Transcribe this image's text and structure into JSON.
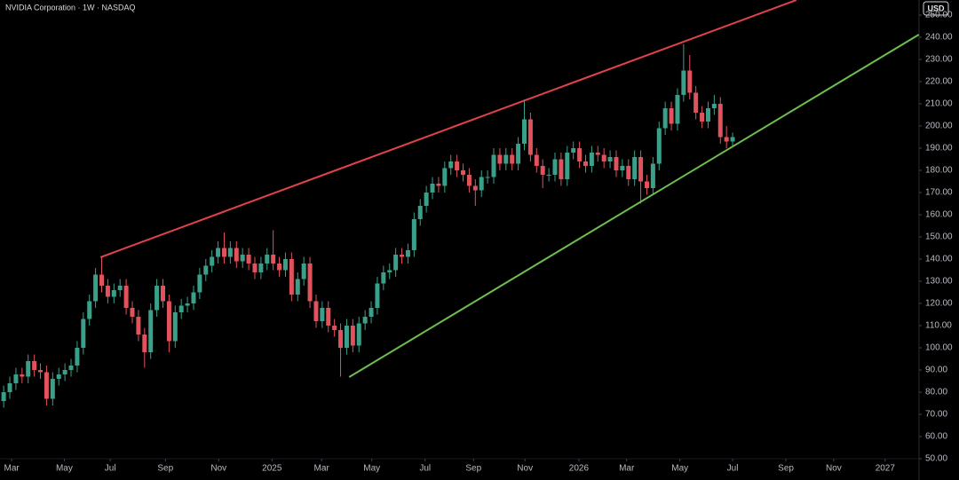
{
  "chart_data": {
    "type": "candlestick",
    "title": "NVIDIA Corporation · 1W · NASDAQ",
    "currency": "USD",
    "up_color": "#3aa08a",
    "down_color": "#e0525c",
    "open": [
      76,
      80,
      84,
      88,
      87,
      94,
      90,
      89,
      77,
      86,
      88,
      90,
      92,
      100,
      113,
      121,
      133,
      128,
      123,
      126,
      128,
      118,
      114,
      106,
      98,
      117,
      128,
      121,
      103,
      116,
      119,
      120,
      125,
      133,
      137,
      141,
      145,
      141,
      145,
      139,
      142,
      138,
      134,
      138,
      142,
      138,
      135,
      140,
      124,
      131,
      138,
      121,
      112,
      118,
      110,
      108,
      100,
      110,
      101,
      111,
      114,
      118,
      129,
      134,
      135,
      142,
      141,
      144,
      158,
      164,
      170,
      174,
      173,
      181,
      184,
      180,
      178,
      173,
      171,
      177,
      177,
      187,
      183,
      187,
      183,
      192,
      203,
      187,
      182,
      178,
      178,
      185,
      176,
      188,
      190,
      184,
      182,
      188,
      187,
      184,
      186,
      180,
      182,
      176,
      186,
      175,
      172,
      183,
      199,
      208,
      201,
      214,
      225,
      215,
      206,
      202,
      208,
      210,
      195,
      193
    ],
    "high": [
      83,
      87,
      91,
      91,
      97,
      97,
      93,
      92,
      89,
      91,
      93,
      95,
      103,
      116,
      124,
      136,
      141,
      131,
      129,
      131,
      131,
      121,
      117,
      109,
      120,
      131,
      131,
      124,
      119,
      122,
      123,
      128,
      136,
      140,
      144,
      148,
      152,
      148,
      148,
      145,
      145,
      141,
      141,
      145,
      153,
      141,
      143,
      143,
      134,
      141,
      141,
      124,
      121,
      121,
      113,
      111,
      113,
      113,
      114,
      117,
      121,
      132,
      137,
      138,
      145,
      145,
      147,
      161,
      167,
      173,
      177,
      177,
      184,
      187,
      187,
      183,
      181,
      176,
      180,
      180,
      190,
      190,
      190,
      190,
      195,
      212,
      206,
      190,
      185,
      181,
      188,
      188,
      191,
      193,
      193,
      187,
      191,
      191,
      190,
      189,
      189,
      185,
      185,
      189,
      189,
      178,
      186,
      202,
      211,
      211,
      217,
      237,
      232,
      218,
      209,
      211,
      214,
      213,
      200,
      197
    ],
    "low": [
      73,
      77,
      81,
      84,
      84,
      87,
      86,
      74,
      74,
      83,
      85,
      87,
      89,
      97,
      110,
      118,
      125,
      120,
      120,
      123,
      115,
      111,
      103,
      91,
      95,
      114,
      118,
      98,
      100,
      113,
      116,
      117,
      122,
      130,
      134,
      138,
      138,
      138,
      136,
      136,
      135,
      131,
      131,
      135,
      135,
      132,
      132,
      121,
      121,
      128,
      118,
      109,
      109,
      107,
      105,
      87,
      97,
      98,
      98,
      108,
      111,
      115,
      126,
      131,
      132,
      138,
      138,
      141,
      155,
      161,
      167,
      170,
      170,
      178,
      177,
      175,
      170,
      164,
      168,
      174,
      174,
      180,
      180,
      180,
      180,
      189,
      184,
      179,
      172,
      175,
      175,
      173,
      173,
      185,
      181,
      179,
      179,
      184,
      181,
      181,
      177,
      177,
      173,
      173,
      165,
      169,
      169,
      180,
      196,
      198,
      198,
      211,
      212,
      203,
      199,
      199,
      205,
      192,
      190,
      191
    ],
    "close": [
      80,
      84,
      88,
      87,
      94,
      90,
      89,
      77,
      86,
      88,
      90,
      92,
      100,
      113,
      121,
      133,
      128,
      123,
      126,
      128,
      118,
      114,
      106,
      98,
      117,
      128,
      121,
      103,
      116,
      119,
      120,
      125,
      133,
      137,
      141,
      145,
      141,
      145,
      139,
      142,
      138,
      134,
      138,
      142,
      138,
      135,
      140,
      124,
      131,
      138,
      121,
      112,
      118,
      110,
      108,
      100,
      110,
      101,
      111,
      114,
      118,
      129,
      134,
      135,
      142,
      141,
      144,
      158,
      164,
      170,
      174,
      173,
      181,
      184,
      180,
      178,
      173,
      171,
      177,
      177,
      187,
      183,
      187,
      183,
      192,
      203,
      187,
      182,
      178,
      178,
      185,
      176,
      188,
      190,
      184,
      182,
      188,
      187,
      184,
      186,
      180,
      182,
      176,
      186,
      175,
      172,
      183,
      199,
      208,
      201,
      214,
      225,
      215,
      206,
      202,
      208,
      210,
      195,
      193,
      195
    ],
    "trendlines": [
      {
        "color": "#e0424c",
        "x": [
          15.8,
          129.4
        ],
        "y": [
          140.8,
          256.8
        ]
      },
      {
        "color": "#6cbf4c",
        "x": [
          56.4,
          149.4
        ],
        "y": [
          86.8,
          241.2
        ]
      }
    ],
    "xlim": [
      -0.6,
      149
    ],
    "xticks": [
      {
        "value": 1.3,
        "label": "Mar"
      },
      {
        "value": 9.9,
        "label": "May"
      },
      {
        "value": 17.4,
        "label": "Jul"
      },
      {
        "value": 26.4,
        "label": "Sep"
      },
      {
        "value": 35.1,
        "label": "Nov"
      },
      {
        "value": 43.8,
        "label": "2025"
      },
      {
        "value": 51.9,
        "label": "Mar"
      },
      {
        "value": 60.1,
        "label": "May"
      },
      {
        "value": 68.8,
        "label": "Jul"
      },
      {
        "value": 76.7,
        "label": "Sep"
      },
      {
        "value": 85.1,
        "label": "Nov"
      },
      {
        "value": 93.9,
        "label": "2026"
      },
      {
        "value": 101.7,
        "label": "Mar"
      },
      {
        "value": 110.4,
        "label": "May"
      },
      {
        "value": 119,
        "label": "Jul"
      },
      {
        "value": 127.7,
        "label": "Sep"
      },
      {
        "value": 135.5,
        "label": "Nov"
      },
      {
        "value": 143.9,
        "label": "2027"
      }
    ],
    "ylim": [
      50,
      256.8
    ],
    "yticks": [
      {
        "value": 50,
        "label": "50.00"
      },
      {
        "value": 60,
        "label": "60.00"
      },
      {
        "value": 70,
        "label": "70.00"
      },
      {
        "value": 80,
        "label": "80.00"
      },
      {
        "value": 90,
        "label": "90.00"
      },
      {
        "value": 100,
        "label": "100.00"
      },
      {
        "value": 110,
        "label": "110.00"
      },
      {
        "value": 120,
        "label": "120.00"
      },
      {
        "value": 130,
        "label": "130.00"
      },
      {
        "value": 140,
        "label": "140.00"
      },
      {
        "value": 150,
        "label": "150.00"
      },
      {
        "value": 160,
        "label": "160.00"
      },
      {
        "value": 170,
        "label": "170.00"
      },
      {
        "value": 180,
        "label": "180.00"
      },
      {
        "value": 190,
        "label": "190.00"
      },
      {
        "value": 200,
        "label": "200.00"
      },
      {
        "value": 210,
        "label": "210.00"
      },
      {
        "value": 220,
        "label": "220.00"
      },
      {
        "value": 230,
        "label": "230.00"
      },
      {
        "value": 240,
        "label": "240.00"
      },
      {
        "value": 250,
        "label": "250.00"
      }
    ]
  }
}
